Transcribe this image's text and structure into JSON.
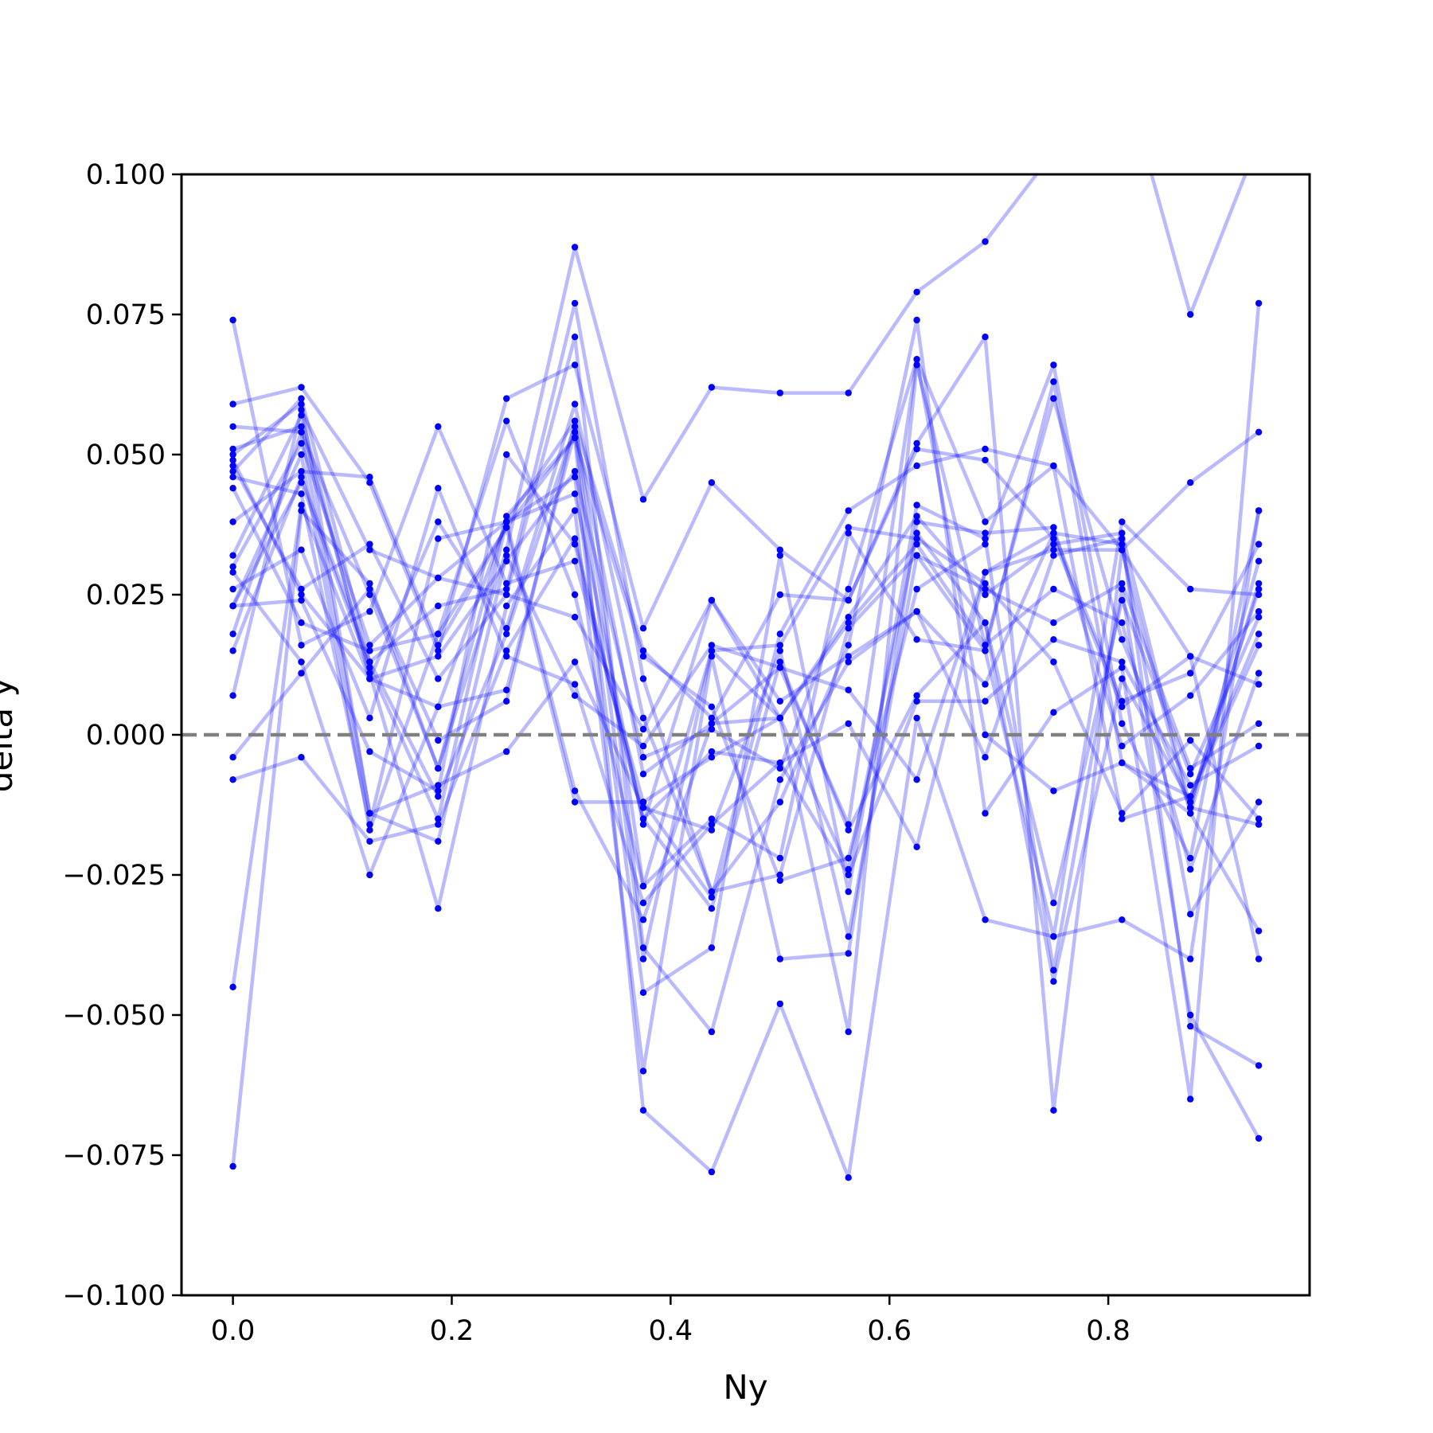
{
  "chart_data": {
    "type": "line",
    "xlabel": "Ny",
    "ylabel": "delta y",
    "xlim": [
      -0.047,
      0.984
    ],
    "ylim": [
      -0.1,
      0.1
    ],
    "x_ticks": [
      0.0,
      0.2,
      0.4,
      0.6,
      0.8
    ],
    "x_tick_labels": [
      "0.0",
      "0.2",
      "0.4",
      "0.6",
      "0.8"
    ],
    "y_ticks": [
      0.1,
      0.075,
      0.05,
      0.025,
      0.0,
      -0.025,
      -0.05,
      -0.075,
      -0.1
    ],
    "y_tick_labels": [
      "0.100",
      "0.075",
      "0.050",
      "0.025",
      "0.000",
      "−0.025",
      "−0.050",
      "−0.075",
      "−0.100"
    ],
    "reference_line": {
      "y": 0.0,
      "style": "dashed",
      "color": "#808080"
    },
    "line_color": "#0000ff",
    "grid": false,
    "legend": false,
    "x": [
      0.0,
      0.0625,
      0.125,
      0.1875,
      0.25,
      0.3125,
      0.375,
      0.4375,
      0.5,
      0.5625,
      0.625,
      0.6875,
      0.75,
      0.8125,
      0.875,
      0.9375
    ],
    "series": [
      {
        "values": [
          0.023,
          0.045,
          0.012,
          -0.015,
          0.038,
          0.056,
          -0.027,
          0.015,
          0.003,
          -0.024,
          0.036,
          0.02,
          -0.044,
          0.01,
          -0.012,
          0.026
        ]
      },
      {
        "values": [
          0.049,
          0.025,
          0.01,
          0.014,
          0.031,
          0.047,
          -0.004,
          0.001,
          -0.006,
          0.026,
          0.067,
          0.038,
          0.048,
          0.033,
          0.014,
          -0.04
        ]
      },
      {
        "values": [
          0.018,
          0.054,
          0.025,
          -0.006,
          0.033,
          0.087,
          0.042,
          0.062,
          0.061,
          0.061,
          0.079,
          0.088,
          0.104,
          0.119,
          0.075,
          0.106
        ]
      },
      {
        "values": [
          0.03,
          0.052,
          0.016,
          0.028,
          0.025,
          0.021,
          0.001,
          0.024,
          0.003,
          0.02,
          0.034,
          0.016,
          0.06,
          0.017,
          -0.013,
          0.031
        ]
      },
      {
        "values": [
          0.074,
          0.016,
          0.022,
          0.055,
          0.027,
          0.031,
          -0.012,
          -0.029,
          0.018,
          0.04,
          0.048,
          0.051,
          0.048,
          -0.015,
          -0.011,
          0.016
        ]
      },
      {
        "values": [
          0.059,
          0.062,
          0.045,
          0.015,
          0.06,
          0.066,
          0.019,
          0.045,
          0.033,
          0.024,
          0.052,
          0.071,
          -0.067,
          0.033,
          0.045,
          0.054
        ]
      },
      {
        "values": [
          -0.077,
          0.04,
          0.027,
          -0.006,
          0.039,
          0.053,
          -0.067,
          -0.078,
          -0.048,
          -0.079,
          0.003,
          -0.033,
          -0.036,
          -0.033,
          -0.04,
          0.04
        ]
      },
      {
        "values": [
          0.048,
          0.026,
          0.034,
          0.01,
          0.025,
          0.071,
          -0.038,
          -0.053,
          -0.008,
          0.013,
          0.022,
          -0.004,
          0.032,
          0.035,
          -0.052,
          -0.059
        ]
      },
      {
        "values": [
          -0.045,
          0.041,
          0.01,
          0.038,
          0.019,
          0.059,
          0.003,
          -0.028,
          -0.025,
          0.019,
          0.032,
          0.015,
          -0.036,
          0.038,
          0.026,
          0.025
        ]
      },
      {
        "values": [
          0.007,
          0.058,
          0.033,
          0.028,
          0.038,
          0.046,
          -0.046,
          -0.038,
          0.032,
          -0.028,
          0.041,
          0.035,
          -0.042,
          0.026,
          -0.05,
          -0.072
        ]
      },
      {
        "values": [
          0.051,
          0.055,
          0.011,
          -0.031,
          0.023,
          0.04,
          -0.06,
          0.014,
          -0.04,
          -0.039,
          0.038,
          0.036,
          0.037,
          -0.002,
          0.007,
          0.022
        ]
      },
      {
        "values": [
          0.055,
          0.054,
          -0.014,
          -0.009,
          -0.003,
          0.013,
          -0.013,
          -0.017,
          0.015,
          -0.036,
          0.032,
          0.026,
          0.02,
          0.027,
          -0.006,
          0.002
        ]
      },
      {
        "values": [
          0.044,
          0.02,
          0.015,
          0.018,
          0.056,
          0.025,
          -0.027,
          -0.015,
          -0.022,
          0.036,
          0.017,
          0.015,
          0.063,
          -0.005,
          -0.011,
          0.018
        ]
      },
      {
        "values": [
          0.026,
          0.033,
          0.003,
          0.044,
          0.014,
          0.009,
          -0.03,
          -0.016,
          -0.005,
          0.002,
          -0.02,
          0.029,
          0.036,
          0.034,
          -0.032,
          -0.012
        ]
      },
      {
        "values": [
          0.032,
          0.057,
          0.01,
          0.005,
          0.008,
          0.054,
          -0.04,
          0.015,
          0.016,
          0.037,
          0.035,
          0.027,
          0.013,
          -0.014,
          -0.001,
          -0.015
        ]
      },
      {
        "values": [
          0.038,
          0.047,
          0.046,
          0.016,
          0.037,
          0.053,
          0.014,
          0.005,
          -0.026,
          -0.022,
          0.026,
          0.034,
          0.066,
          0.002,
          -0.022,
          0.04
        ]
      },
      {
        "values": [
          0.023,
          0.024,
          -0.003,
          -0.01,
          0.05,
          0.034,
          -0.015,
          -0.031,
          0.013,
          -0.017,
          0.007,
          0.02,
          -0.03,
          0.024,
          -0.007,
          0.021
        ]
      },
      {
        "values": [
          -0.008,
          -0.004,
          -0.019,
          -0.016,
          0.015,
          0.035,
          -0.015,
          -0.003,
          -0.005,
          -0.025,
          0.006,
          0.006,
          0.017,
          0.013,
          -0.009,
          -0.002
        ]
      },
      {
        "values": [
          0.015,
          0.046,
          0.013,
          -0.011,
          0.018,
          0.055,
          -0.007,
          0.002,
          0.003,
          -0.053,
          0.066,
          0.016,
          0.026,
          0.02,
          -0.024,
          0.011
        ]
      },
      {
        "values": [
          0.046,
          0.043,
          -0.016,
          0.035,
          0.038,
          0.043,
          -0.016,
          0.024,
          0.006,
          0.014,
          0.022,
          0.009,
          0.036,
          0.006,
          0.011,
          0.034
        ]
      },
      {
        "values": [
          0.047,
          0.06,
          0.013,
          0.023,
          0.026,
          0.077,
          0.01,
          -0.028,
          -0.012,
          0.016,
          0.074,
          -0.014,
          0.004,
          0.012,
          -0.065,
          0.077
        ]
      },
      {
        "values": [
          0.029,
          0.013,
          -0.025,
          0.005,
          0.038,
          -0.01,
          -0.033,
          0.002,
          0.012,
          -0.016,
          0.067,
          0.0,
          -0.01,
          -0.005,
          -0.014,
          0.027
        ]
      },
      {
        "values": [
          0.023,
          0.05,
          -0.017,
          0.018,
          0.037,
          -0.012,
          -0.012,
          -0.004,
          0.003,
          0.021,
          0.039,
          0.025,
          0.034,
          0.036,
          -0.013,
          -0.016
        ]
      },
      {
        "values": [
          -0.004,
          0.011,
          0.026,
          -0.001,
          0.006,
          0.056,
          0.015,
          0.003,
          0.025,
          0.024,
          0.051,
          0.049,
          0.035,
          0.005,
          0.014,
          0.009
        ]
      },
      {
        "values": [
          0.05,
          0.059,
          -0.014,
          -0.019,
          0.032,
          0.007,
          -0.002,
          0.016,
          0.012,
          0.008,
          -0.008,
          0.029,
          0.033,
          0.033,
          -0.014,
          -0.035
        ]
      }
    ]
  }
}
